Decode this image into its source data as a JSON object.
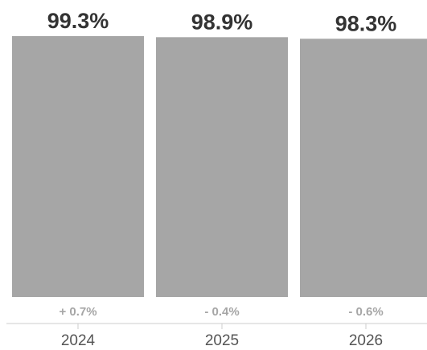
{
  "chart_data": {
    "type": "bar",
    "categories": [
      "2024",
      "2025",
      "2026"
    ],
    "values": [
      99.3,
      98.9,
      98.3
    ],
    "value_labels": [
      "99.3%",
      "98.9%",
      "98.3%"
    ],
    "change_labels": [
      "+ 0.7%",
      "- 0.4%",
      "- 0.6%"
    ],
    "bar_color": "#a6a6a6",
    "axis_color": "#cccccc",
    "title": "",
    "xlabel": "",
    "ylabel": "",
    "grid": false,
    "legend": "none"
  }
}
